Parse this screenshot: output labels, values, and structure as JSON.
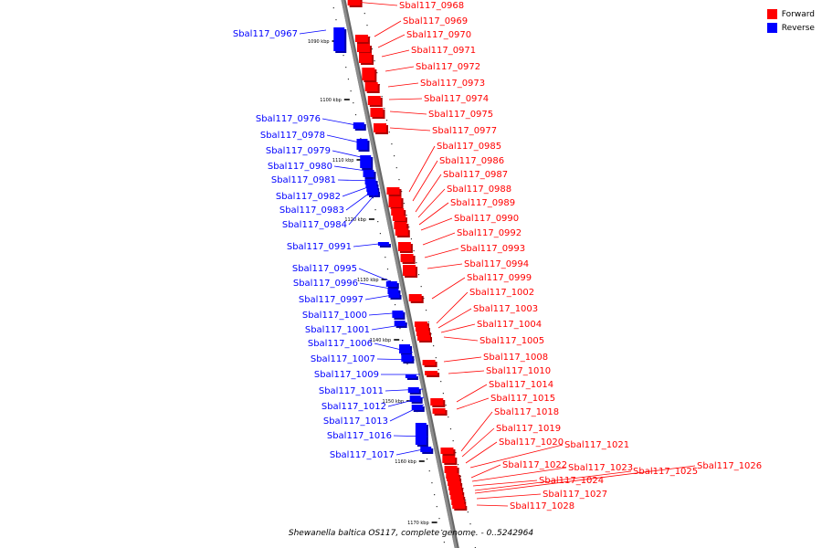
{
  "colors": {
    "forward": "#ff0000",
    "reverse": "#0000ff",
    "backbone": "#8c8c8c"
  },
  "legend": {
    "forward_label": "Forward",
    "reverse_label": "Reverse"
  },
  "caption": "Shewanella baltica OS117, complete genome. - 0..5242964",
  "ticks": [
    "1090 kbp",
    "1100 kbp",
    "1110 kbp",
    "1120 kbp",
    "1130 kbp",
    "1140 kbp",
    "1150 kbp",
    "1160 kbp",
    "1170 kbp"
  ],
  "genes": [
    {
      "id": "Sbal117_0967",
      "strand": "reverse"
    },
    {
      "id": "Sbal117_0968",
      "strand": "forward"
    },
    {
      "id": "Sbal117_0969",
      "strand": "forward"
    },
    {
      "id": "Sbal117_0970",
      "strand": "forward"
    },
    {
      "id": "Sbal117_0971",
      "strand": "forward"
    },
    {
      "id": "Sbal117_0972",
      "strand": "forward"
    },
    {
      "id": "Sbal117_0973",
      "strand": "forward"
    },
    {
      "id": "Sbal117_0974",
      "strand": "forward"
    },
    {
      "id": "Sbal117_0975",
      "strand": "forward"
    },
    {
      "id": "Sbal117_0976",
      "strand": "reverse"
    },
    {
      "id": "Sbal117_0977",
      "strand": "forward"
    },
    {
      "id": "Sbal117_0978",
      "strand": "reverse"
    },
    {
      "id": "Sbal117_0979",
      "strand": "reverse"
    },
    {
      "id": "Sbal117_0980",
      "strand": "reverse"
    },
    {
      "id": "Sbal117_0981",
      "strand": "reverse"
    },
    {
      "id": "Sbal117_0982",
      "strand": "reverse"
    },
    {
      "id": "Sbal117_0983",
      "strand": "reverse"
    },
    {
      "id": "Sbal117_0984",
      "strand": "reverse"
    },
    {
      "id": "Sbal117_0985",
      "strand": "forward"
    },
    {
      "id": "Sbal117_0986",
      "strand": "forward"
    },
    {
      "id": "Sbal117_0987",
      "strand": "forward"
    },
    {
      "id": "Sbal117_0988",
      "strand": "forward"
    },
    {
      "id": "Sbal117_0989",
      "strand": "forward"
    },
    {
      "id": "Sbal117_0990",
      "strand": "forward"
    },
    {
      "id": "Sbal117_0991",
      "strand": "reverse"
    },
    {
      "id": "Sbal117_0992",
      "strand": "forward"
    },
    {
      "id": "Sbal117_0993",
      "strand": "forward"
    },
    {
      "id": "Sbal117_0994",
      "strand": "forward"
    },
    {
      "id": "Sbal117_0995",
      "strand": "reverse"
    },
    {
      "id": "Sbal117_0996",
      "strand": "reverse"
    },
    {
      "id": "Sbal117_0997",
      "strand": "reverse"
    },
    {
      "id": "Sbal117_0999",
      "strand": "forward"
    },
    {
      "id": "Sbal117_1000",
      "strand": "reverse"
    },
    {
      "id": "Sbal117_1001",
      "strand": "reverse"
    },
    {
      "id": "Sbal117_1002",
      "strand": "forward"
    },
    {
      "id": "Sbal117_1003",
      "strand": "forward"
    },
    {
      "id": "Sbal117_1004",
      "strand": "forward"
    },
    {
      "id": "Sbal117_1005",
      "strand": "forward"
    },
    {
      "id": "Sbal117_1006",
      "strand": "reverse"
    },
    {
      "id": "Sbal117_1007",
      "strand": "reverse"
    },
    {
      "id": "Sbal117_1008",
      "strand": "forward"
    },
    {
      "id": "Sbal117_1009",
      "strand": "reverse"
    },
    {
      "id": "Sbal117_1010",
      "strand": "forward"
    },
    {
      "id": "Sbal117_1011",
      "strand": "reverse"
    },
    {
      "id": "Sbal117_1012",
      "strand": "reverse"
    },
    {
      "id": "Sbal117_1013",
      "strand": "reverse"
    },
    {
      "id": "Sbal117_1014",
      "strand": "forward"
    },
    {
      "id": "Sbal117_1015",
      "strand": "forward"
    },
    {
      "id": "Sbal117_1016",
      "strand": "reverse"
    },
    {
      "id": "Sbal117_1017",
      "strand": "reverse"
    },
    {
      "id": "Sbal117_1018",
      "strand": "forward"
    },
    {
      "id": "Sbal117_1019",
      "strand": "forward"
    },
    {
      "id": "Sbal117_1020",
      "strand": "forward"
    },
    {
      "id": "Sbal117_1021",
      "strand": "forward"
    },
    {
      "id": "Sbal117_1022",
      "strand": "forward"
    },
    {
      "id": "Sbal117_1023",
      "strand": "forward"
    },
    {
      "id": "Sbal117_1024",
      "strand": "forward"
    },
    {
      "id": "Sbal117_1025",
      "strand": "forward"
    },
    {
      "id": "Sbal117_1026",
      "strand": "forward"
    },
    {
      "id": "Sbal117_1027",
      "strand": "forward"
    },
    {
      "id": "Sbal117_1028",
      "strand": "forward"
    }
  ]
}
